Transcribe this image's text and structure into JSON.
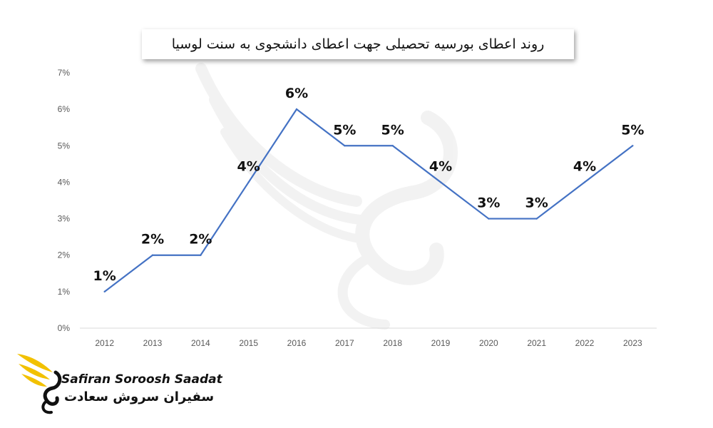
{
  "brand": {
    "name_en": "Safiran Soroosh Saadat",
    "name_fa": "سفیران سروش سعادت",
    "logo_icon": "winged-bird-logo-icon",
    "logo_color": "#f2c100"
  },
  "watermark": {
    "icon": "winged-swan-watermark-icon"
  },
  "colors": {
    "line": "#4472c4",
    "axis_text": "#595959",
    "baseline": "#d9d9d9"
  },
  "chart_data": {
    "type": "line",
    "title": "روند اعطای بورسیه تحصیلی جهت اعطای دانشجوی به سنت لوسیا",
    "x": [
      "2012",
      "2013",
      "2014",
      "2015",
      "2016",
      "2017",
      "2018",
      "2019",
      "2020",
      "2021",
      "2022",
      "2023"
    ],
    "y": [
      1,
      2,
      2,
      4,
      6,
      5,
      5,
      4,
      3,
      3,
      4,
      5
    ],
    "data_labels": [
      "1%",
      "2%",
      "2%",
      "4%",
      "6%",
      "5%",
      "5%",
      "4%",
      "3%",
      "3%",
      "4%",
      "5%"
    ],
    "y_ticks": [
      "0%",
      "1%",
      "2%",
      "3%",
      "4%",
      "5%",
      "6%",
      "7%"
    ],
    "ylim": [
      0,
      7
    ],
    "grid": false,
    "legend": "none"
  }
}
